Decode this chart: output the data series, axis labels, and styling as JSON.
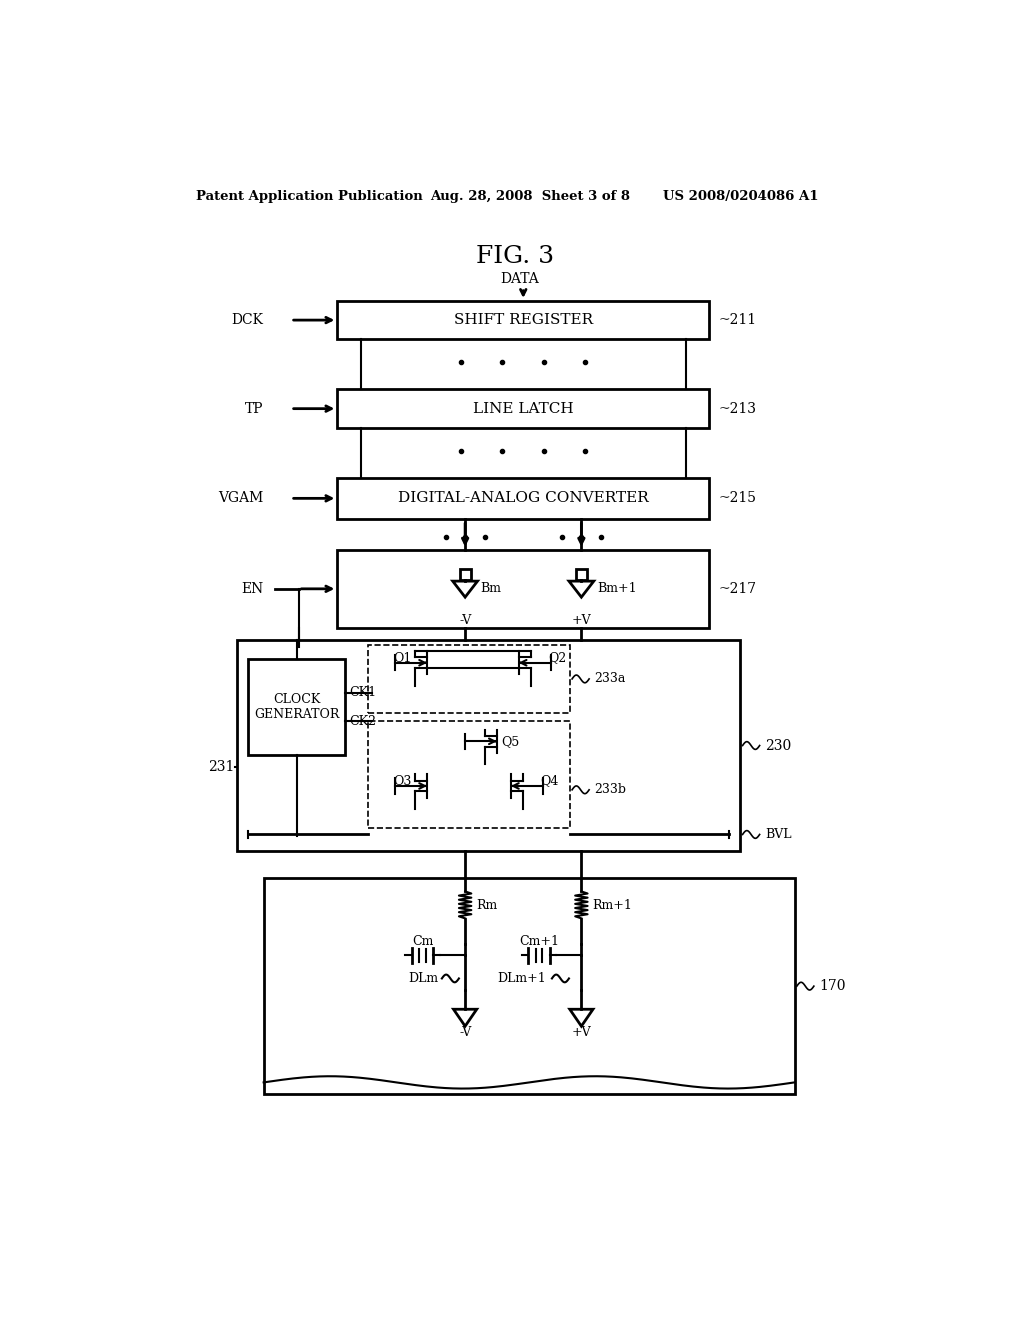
{
  "bg_color": "#ffffff",
  "header_left": "Patent Application Publication",
  "header_mid": "Aug. 28, 2008  Sheet 3 of 8",
  "header_right": "US 2008/0204086 A1",
  "fig_title": "FIG. 3",
  "block_211_label": "SHIFT REGISTER",
  "block_213_label": "LINE LATCH",
  "block_215_label": "DIGITAL-ANALOG CONVERTER",
  "block_211_ref": "211",
  "block_213_ref": "213",
  "block_215_ref": "215",
  "block_217_ref": "217",
  "block_230_ref": "230",
  "block_170_ref": "170",
  "block_231_ref": "231"
}
